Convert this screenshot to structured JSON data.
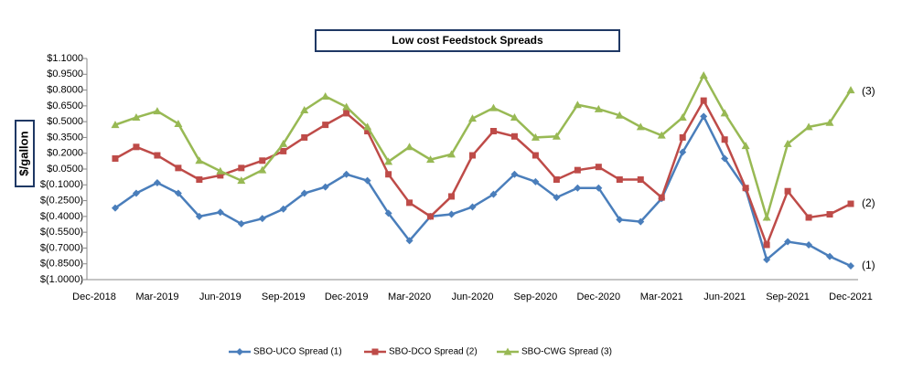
{
  "chart_data": {
    "type": "line",
    "title": "Low cost Feedstock Spreads",
    "y_label": "$/gallon",
    "categories": [
      "Dec-2018",
      null,
      null,
      "Mar-2019",
      null,
      null,
      "Jun-2019",
      null,
      null,
      "Sep-2019",
      null,
      null,
      "Dec-2019",
      null,
      null,
      "Mar-2020",
      null,
      null,
      "Jun-2020",
      null,
      null,
      "Sep-2020",
      null,
      null,
      "Dec-2020",
      null,
      null,
      "Mar-2021",
      null,
      null,
      "Jun-2021",
      null,
      null,
      "Sep-2021",
      null,
      null,
      "Dec-2021"
    ],
    "series": [
      {
        "name": "SBO-UCO Spread (1)",
        "color": "#4a7ebb",
        "marker": "diamond",
        "values": [
          null,
          -0.32,
          -0.18,
          -0.08,
          -0.18,
          -0.4,
          -0.36,
          -0.47,
          -0.42,
          -0.33,
          -0.18,
          -0.12,
          0.0,
          -0.06,
          -0.37,
          -0.63,
          -0.4,
          -0.38,
          -0.31,
          -0.19,
          0.0,
          -0.07,
          -0.22,
          -0.13,
          -0.13,
          -0.43,
          -0.45,
          -0.23,
          0.21,
          0.55,
          0.15,
          -0.14,
          -0.81,
          -0.64,
          -0.67,
          -0.78,
          -0.87
        ]
      },
      {
        "name": "SBO-DCO Spread (2)",
        "color": "#be4b48",
        "marker": "square",
        "values": [
          null,
          0.15,
          0.26,
          0.18,
          0.06,
          -0.05,
          -0.01,
          0.06,
          0.13,
          0.22,
          0.35,
          0.47,
          0.58,
          0.41,
          0.0,
          -0.27,
          -0.4,
          -0.21,
          0.18,
          0.41,
          0.36,
          0.18,
          -0.05,
          0.04,
          0.07,
          -0.05,
          -0.05,
          -0.22,
          0.35,
          0.7,
          0.33,
          -0.13,
          -0.67,
          -0.16,
          -0.41,
          -0.38,
          -0.28
        ]
      },
      {
        "name": "SBO-CWG Spread (3)",
        "color": "#98b954",
        "marker": "triangle",
        "values": [
          null,
          0.47,
          0.54,
          0.6,
          0.48,
          0.13,
          0.03,
          -0.06,
          0.04,
          0.29,
          0.61,
          0.74,
          0.64,
          0.45,
          0.12,
          0.26,
          0.14,
          0.19,
          0.53,
          0.63,
          0.54,
          0.35,
          0.36,
          0.66,
          0.62,
          0.56,
          0.45,
          0.37,
          0.54,
          0.94,
          0.58,
          0.27,
          -0.41,
          0.29,
          0.45,
          0.49,
          0.8
        ]
      }
    ],
    "annotations": [
      "(1)",
      "(2)",
      "(3)"
    ],
    "ylim": [
      -1.0,
      1.1
    ],
    "yticks": [
      {
        "value": 1.1,
        "label": "$1.1000"
      },
      {
        "value": 0.95,
        "label": "$0.9500"
      },
      {
        "value": 0.8,
        "label": "$0.8000"
      },
      {
        "value": 0.65,
        "label": "$0.6500"
      },
      {
        "value": 0.5,
        "label": "$0.5000"
      },
      {
        "value": 0.35,
        "label": "$0.3500"
      },
      {
        "value": 0.2,
        "label": "$0.2000"
      },
      {
        "value": 0.05,
        "label": "$0.0500"
      },
      {
        "value": -0.1,
        "label": "$(0.1000)"
      },
      {
        "value": -0.25,
        "label": "$(0.2500)"
      },
      {
        "value": -0.4,
        "label": "$(0.4000)"
      },
      {
        "value": -0.55,
        "label": "$(0.5500)"
      },
      {
        "value": -0.7,
        "label": "$(0.7000)"
      },
      {
        "value": -0.85,
        "label": "$(0.8500)"
      },
      {
        "value": -1.0,
        "label": "$(1.0000)"
      }
    ],
    "grid": false,
    "legend": "bottom"
  }
}
